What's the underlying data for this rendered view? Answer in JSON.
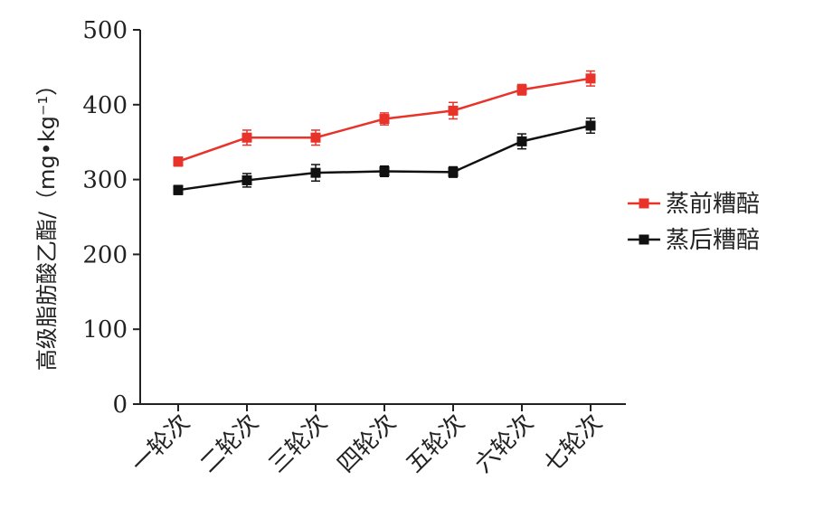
{
  "chart_data": {
    "type": "line",
    "categories": [
      "一轮次",
      "二轮次",
      "三轮次",
      "四轮次",
      "五轮次",
      "六轮次",
      "七轮次"
    ],
    "series": [
      {
        "name": "蒸前糟醅",
        "color": "#e8332a",
        "values": [
          324,
          356,
          356,
          381,
          392,
          420,
          435
        ],
        "errors": [
          6,
          10,
          10,
          8,
          11,
          7,
          10
        ]
      },
      {
        "name": "蒸后糟醅",
        "color": "#111111",
        "values": [
          286,
          299,
          309,
          311,
          310,
          351,
          372
        ],
        "errors": [
          6,
          9,
          11,
          7,
          7,
          10,
          10
        ]
      }
    ],
    "ylabel": "高级脂肪酸乙酯/（mg•kg⁻¹）",
    "ylim": [
      0,
      500
    ],
    "yticks": [
      0,
      100,
      200,
      300,
      400,
      500
    ],
    "grid": false,
    "legend_position": "right"
  }
}
